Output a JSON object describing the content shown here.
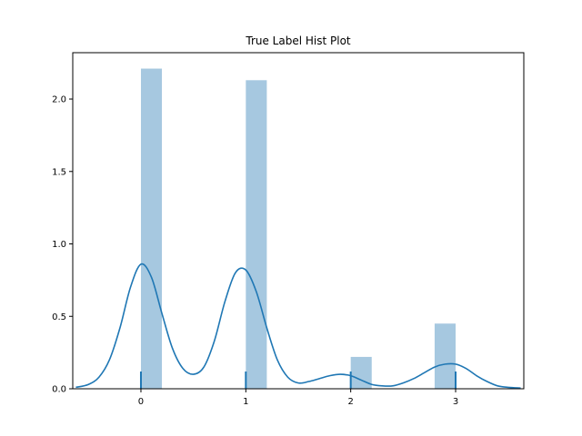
{
  "chart_data": {
    "type": "bar",
    "title": "True Label Hist Plot",
    "xlabel": "",
    "ylabel": "",
    "xlim": [
      -0.65,
      3.65
    ],
    "ylim": [
      0,
      2.32
    ],
    "x_ticks": [
      0,
      1,
      2,
      3
    ],
    "x_tick_labels": [
      "0",
      "1",
      "2",
      "3"
    ],
    "y_ticks": [
      0.0,
      0.5,
      1.0,
      1.5,
      2.0
    ],
    "y_tick_labels": [
      "0.0",
      "0.5",
      "1.0",
      "1.5",
      "2.0"
    ],
    "grid": false,
    "legend": "none",
    "bars": [
      {
        "x0": 0.0,
        "x1": 0.2,
        "value": 2.21
      },
      {
        "x0": 1.0,
        "x1": 1.2,
        "value": 2.13
      },
      {
        "x0": 2.0,
        "x1": 2.2,
        "value": 0.22
      },
      {
        "x0": 2.8,
        "x1": 3.0,
        "value": 0.45
      }
    ],
    "kde": {
      "x": [
        -0.62,
        -0.5,
        -0.4,
        -0.3,
        -0.2,
        -0.1,
        0.0,
        0.1,
        0.2,
        0.3,
        0.4,
        0.5,
        0.6,
        0.7,
        0.8,
        0.9,
        1.0,
        1.1,
        1.2,
        1.3,
        1.4,
        1.5,
        1.6,
        1.7,
        1.8,
        1.9,
        2.0,
        2.1,
        2.2,
        2.3,
        2.4,
        2.5,
        2.6,
        2.7,
        2.8,
        2.9,
        3.0,
        3.1,
        3.2,
        3.3,
        3.4,
        3.5,
        3.62
      ],
      "y": [
        0.01,
        0.03,
        0.08,
        0.2,
        0.42,
        0.7,
        0.86,
        0.77,
        0.52,
        0.28,
        0.14,
        0.1,
        0.15,
        0.33,
        0.6,
        0.8,
        0.82,
        0.67,
        0.42,
        0.2,
        0.08,
        0.04,
        0.05,
        0.07,
        0.09,
        0.1,
        0.09,
        0.06,
        0.03,
        0.02,
        0.02,
        0.04,
        0.07,
        0.11,
        0.15,
        0.17,
        0.17,
        0.14,
        0.09,
        0.05,
        0.02,
        0.01,
        0.005
      ]
    },
    "rug": [
      0,
      1,
      2,
      3
    ],
    "colors": {
      "bar": "#a6c8e0",
      "line": "#1f77b4",
      "rug": "#1f77b4",
      "axes": "#000000"
    }
  }
}
